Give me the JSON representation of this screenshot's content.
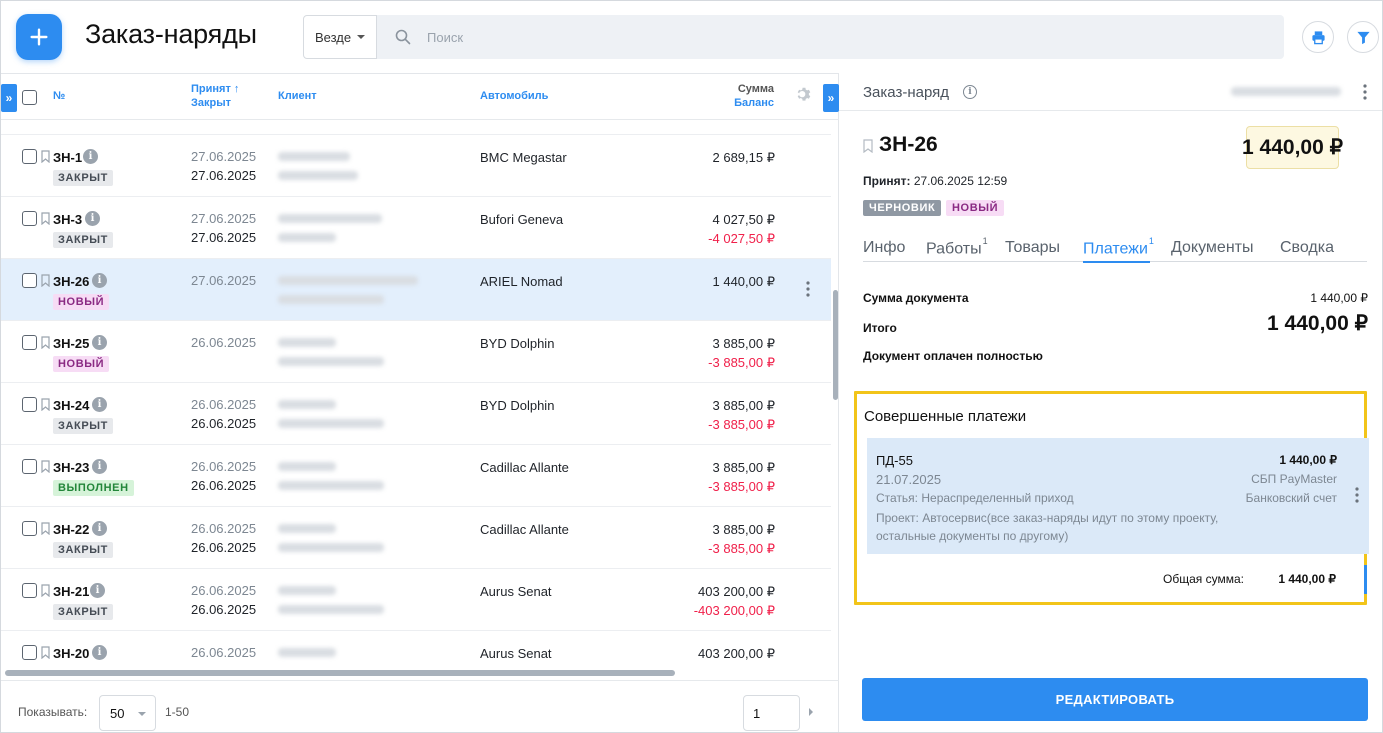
{
  "header": {
    "title": "Заказ-наряды",
    "scope": "Везде",
    "search_placeholder": "Поиск"
  },
  "table": {
    "columns": {
      "num": "№",
      "accepted": "Принят ↑",
      "closed": "Закрыт",
      "client": "Клиент",
      "car": "Автомобиль",
      "sum": "Сумма",
      "balance": "Баланс"
    },
    "rows": [
      {
        "num": "ЗН-1",
        "status": "ЗАКРЫТ",
        "status_kind": "closed",
        "d1": "27.06.2025",
        "d2": "27.06.2025",
        "car": "BMC Megastar",
        "sum": "2 689,15 ₽",
        "balance": ""
      },
      {
        "num": "ЗН-3",
        "status": "ЗАКРЫТ",
        "status_kind": "closed",
        "d1": "27.06.2025",
        "d2": "27.06.2025",
        "car": "Bufori Geneva",
        "sum": "4 027,50 ₽",
        "balance": "-4 027,50 ₽"
      },
      {
        "num": "ЗН-26",
        "status": "НОВЫЙ",
        "status_kind": "new",
        "d1": "27.06.2025",
        "d2": "",
        "car": "ARIEL Nomad",
        "sum": "1 440,00 ₽",
        "balance": ""
      },
      {
        "num": "ЗН-25",
        "status": "НОВЫЙ",
        "status_kind": "new",
        "d1": "26.06.2025",
        "d2": "",
        "car": "BYD Dolphin",
        "sum": "3 885,00 ₽",
        "balance": "-3 885,00 ₽"
      },
      {
        "num": "ЗН-24",
        "status": "ЗАКРЫТ",
        "status_kind": "closed",
        "d1": "26.06.2025",
        "d2": "26.06.2025",
        "car": "BYD Dolphin",
        "sum": "3 885,00 ₽",
        "balance": "-3 885,00 ₽"
      },
      {
        "num": "ЗН-23",
        "status": "ВЫПОЛНЕН",
        "status_kind": "done",
        "d1": "26.06.2025",
        "d2": "26.06.2025",
        "car": "Cadillac Allante",
        "sum": "3 885,00 ₽",
        "balance": "-3 885,00 ₽"
      },
      {
        "num": "ЗН-22",
        "status": "ЗАКРЫТ",
        "status_kind": "closed",
        "d1": "26.06.2025",
        "d2": "26.06.2025",
        "car": "Cadillac Allante",
        "sum": "3 885,00 ₽",
        "balance": "-3 885,00 ₽"
      },
      {
        "num": "ЗН-21",
        "status": "ЗАКРЫТ",
        "status_kind": "closed",
        "d1": "26.06.2025",
        "d2": "26.06.2025",
        "car": "Aurus Senat",
        "sum": "403 200,00 ₽",
        "balance": "-403 200,00 ₽"
      },
      {
        "num": "ЗН-20",
        "status": "",
        "status_kind": "",
        "d1": "26.06.2025",
        "d2": "",
        "car": "Aurus Senat",
        "sum": "403 200,00 ₽",
        "balance": ""
      }
    ]
  },
  "pager": {
    "show_label": "Показывать:",
    "page_size": "50",
    "range": "1-50",
    "page": "1"
  },
  "detail": {
    "panel_title": "Заказ-наряд",
    "doc_number": "ЗН-26",
    "total": "1 440,00 ₽",
    "accepted_label": "Принят:",
    "accepted_value": "27.06.2025 12:59",
    "tags": [
      "ЧЕРНОВИК",
      "НОВЫЙ"
    ],
    "tabs": [
      {
        "label": "Инфо",
        "count": ""
      },
      {
        "label": "Работы",
        "count": "1"
      },
      {
        "label": "Товары",
        "count": ""
      },
      {
        "label": "Платежи",
        "count": "1"
      },
      {
        "label": "Документы",
        "count": ""
      },
      {
        "label": "Сводка",
        "count": ""
      }
    ],
    "active_tab": "Платежи",
    "doc_sum_label": "Сумма документа",
    "doc_sum_value": "1 440,00 ₽",
    "total_label": "Итого",
    "total_value": "1 440,00 ₽",
    "paid_note": "Документ оплачен полностью",
    "payments": {
      "heading": "Совершенные платежи",
      "item": {
        "number": "ПД-55",
        "amount": "1 440,00 ₽",
        "date": "21.07.2025",
        "method": "СБП PayMaster",
        "article": "Статья: Нераспределенный приход",
        "account": "Банковский счет",
        "project": "Проект: Автосервис(все заказ-наряды идут по этому проекту, остальные документы по другому)"
      },
      "sum_label": "Общая сумма:",
      "sum_value": "1 440,00 ₽"
    },
    "edit_button": "РЕДАКТИРОВАТЬ"
  },
  "colors": {
    "accent": "#2d8cf0",
    "negative": "#f0204a",
    "highlight_border": "#f2c419",
    "selected_row": "#e3effc"
  }
}
